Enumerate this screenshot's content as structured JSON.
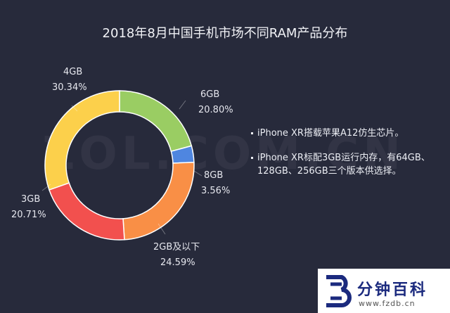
{
  "chart_data": {
    "type": "pie",
    "title": "2018年8月中国手机市场不同RAM产品分布",
    "slices": [
      {
        "label": "6GB",
        "value": 20.8,
        "display": "20.80%",
        "color": "#9acd63"
      },
      {
        "label": "8GB",
        "value": 3.56,
        "display": "3.56%",
        "color": "#4f86e0"
      },
      {
        "label": "2GB及以下",
        "value": 24.59,
        "display": "24.59%",
        "color": "#f98f46"
      },
      {
        "label": "3GB",
        "value": 20.71,
        "display": "20.71%",
        "color": "#f2504e"
      },
      {
        "label": "4GB",
        "value": 30.34,
        "display": "30.34%",
        "color": "#fcd04b"
      }
    ],
    "legend": "none"
  },
  "notes": [
    "iPhone XR搭载苹果A12仿生芯片。",
    "iPhone XR标配3GB运行内存，有64GB、128GB、256GB三个版本供选择。"
  ],
  "watermark": "ZOL.COM.CN",
  "logo": {
    "name": "分钟百科",
    "url": "www.fzdb.cn",
    "color": "#1b2a7e"
  }
}
